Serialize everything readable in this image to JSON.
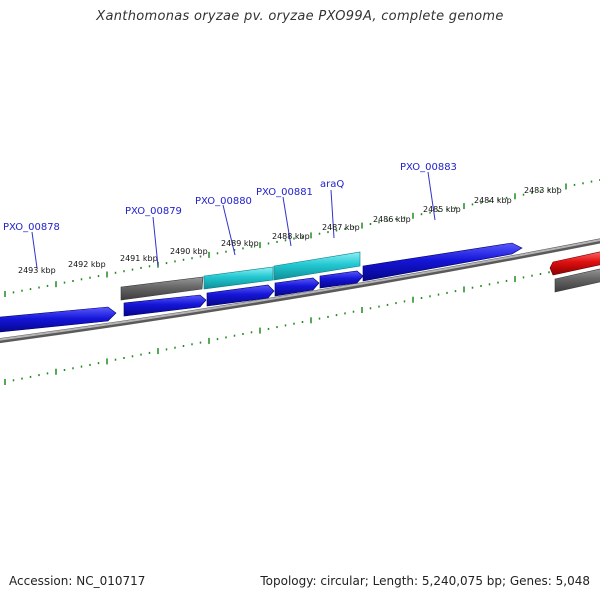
{
  "title": "Xanthomonas oryzae pv. oryzae PXO99A, complete genome",
  "footer": {
    "accession": "Accession: NC_010717",
    "summary": "Topology: circular; Length: 5,240,075 bp; Genes: 5,048"
  },
  "colors": {
    "forward_gene": "#1515d8",
    "reverse_gene_dark": "#6e6e6e",
    "reverse_gene_cyan": "#22c8d2",
    "highlight_gene": "#e01010",
    "backbone": "#8a8a8a",
    "ticks": "#1f8a1f",
    "gene_label": "#2222cc"
  },
  "kbp_labels": [
    "2493 kbp",
    "2492 kbp",
    "2491 kbp",
    "2490 kbp",
    "2489 kbp",
    "2488 kbp",
    "2487 kbp",
    "2486 kbp",
    "2485 kbp",
    "2484 kbp",
    "2483 kbp"
  ],
  "gene_labels": [
    "PXO_00878",
    "PXO_00879",
    "PXO_00880",
    "PXO_00881",
    "araQ",
    "PXO_00883"
  ]
}
